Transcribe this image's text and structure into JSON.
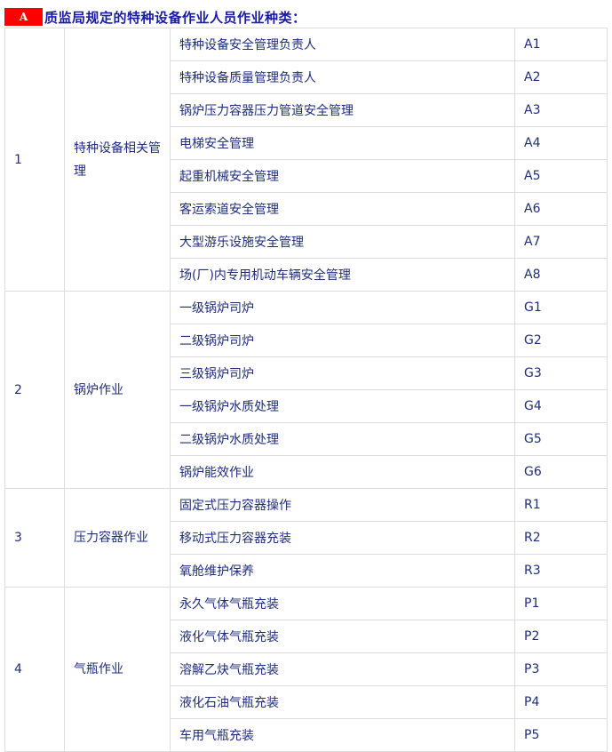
{
  "title": {
    "badge": "A",
    "text": "质监局规定的特种设备作业人员作业种类："
  },
  "colors": {
    "badge": "#ff0000",
    "title": "#1a1aa8",
    "text": "#1f2d7a",
    "border": "#dddddd"
  },
  "groups": [
    {
      "no": "1",
      "category": "特种设备相关管理",
      "items": [
        {
          "name": "特种设备安全管理负责人",
          "code": "A1"
        },
        {
          "name": "特种设备质量管理负责人",
          "code": "A2"
        },
        {
          "name": "锅炉压力容器压力管道安全管理",
          "code": "A3"
        },
        {
          "name": "电梯安全管理",
          "code": "A4"
        },
        {
          "name": "起重机械安全管理",
          "code": "A5"
        },
        {
          "name": "客运索道安全管理",
          "code": "A6"
        },
        {
          "name": "大型游乐设施安全管理",
          "code": "A7"
        },
        {
          "name": "场(厂)内专用机动车辆安全管理",
          "code": "A8"
        }
      ]
    },
    {
      "no": "2",
      "category": "锅炉作业",
      "items": [
        {
          "name": "一级锅炉司炉",
          "code": "G1"
        },
        {
          "name": "二级锅炉司炉",
          "code": "G2"
        },
        {
          "name": "三级锅炉司炉",
          "code": "G3"
        },
        {
          "name": "一级锅炉水质处理",
          "code": "G4"
        },
        {
          "name": "二级锅炉水质处理",
          "code": "G5"
        },
        {
          "name": "锅炉能效作业",
          "code": "G6"
        }
      ]
    },
    {
      "no": "3",
      "category": "压力容器作业",
      "items": [
        {
          "name": "固定式压力容器操作",
          "code": "R1"
        },
        {
          "name": "移动式压力容器充装",
          "code": "R2"
        },
        {
          "name": "氧舱维护保养",
          "code": "R3"
        }
      ]
    },
    {
      "no": "4",
      "category": "气瓶作业",
      "items": [
        {
          "name": "永久气体气瓶充装",
          "code": "P1"
        },
        {
          "name": "液化气体气瓶充装",
          "code": "P2"
        },
        {
          "name": "溶解乙炔气瓶充装",
          "code": "P3"
        },
        {
          "name": "液化石油气瓶充装",
          "code": "P4"
        },
        {
          "name": "车用气瓶充装",
          "code": "P5"
        }
      ]
    }
  ]
}
